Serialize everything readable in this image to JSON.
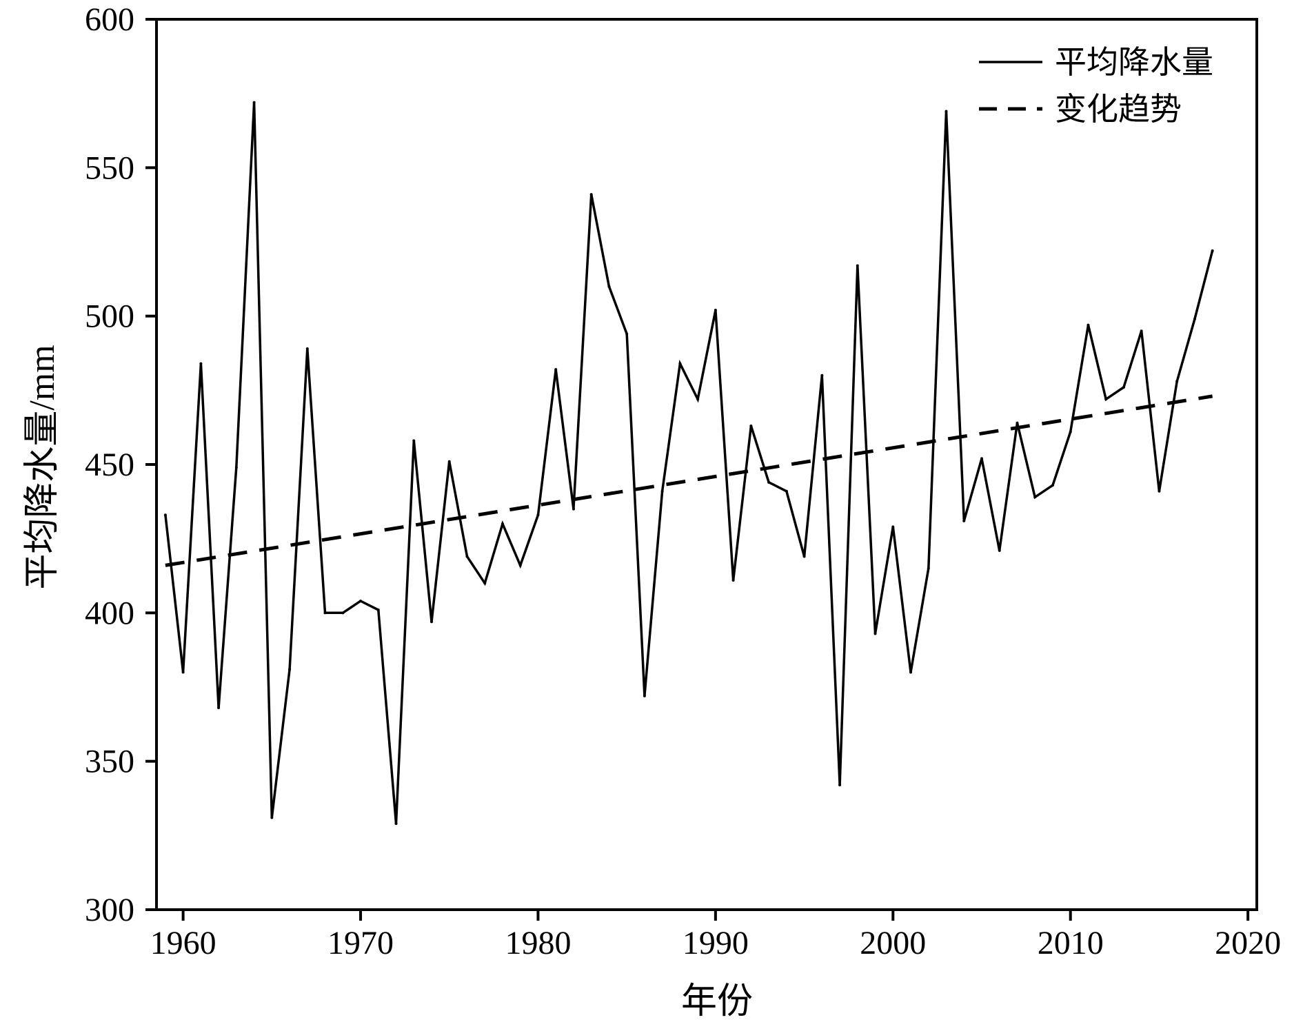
{
  "chart_data": {
    "type": "line",
    "title": "",
    "xlabel": "年份",
    "ylabel": "平均降水量/mm",
    "xlim": [
      1958.5,
      2020.5
    ],
    "ylim": [
      300,
      600
    ],
    "xticks": [
      1960,
      1970,
      1980,
      1990,
      2000,
      2010,
      2020
    ],
    "yticks": [
      300,
      350,
      400,
      450,
      500,
      550,
      600
    ],
    "grid": false,
    "legend_position": "top-right",
    "series": [
      {
        "name": "平均降水量",
        "style": "solid",
        "color": "#000000",
        "x": [
          1959,
          1960,
          1961,
          1962,
          1963,
          1964,
          1965,
          1966,
          1967,
          1968,
          1969,
          1970,
          1971,
          1972,
          1973,
          1974,
          1975,
          1976,
          1977,
          1978,
          1979,
          1980,
          1981,
          1982,
          1983,
          1984,
          1985,
          1986,
          1987,
          1988,
          1989,
          1990,
          1991,
          1992,
          1993,
          1994,
          1995,
          1996,
          1997,
          1998,
          1999,
          2000,
          2001,
          2002,
          2003,
          2004,
          2005,
          2006,
          2007,
          2008,
          2009,
          2010,
          2011,
          2012,
          2013,
          2014,
          2015,
          2016,
          2017,
          2018
        ],
        "y": [
          433,
          380,
          484,
          368,
          449,
          572,
          331,
          381,
          489,
          400,
          400,
          404,
          401,
          329,
          458,
          397,
          451,
          419,
          410,
          430,
          416,
          433,
          482,
          435,
          541,
          510,
          494,
          372,
          441,
          484,
          472,
          502,
          411,
          463,
          444,
          441,
          419,
          480,
          342,
          517,
          393,
          429,
          380,
          415,
          569,
          431,
          452,
          421,
          464,
          439,
          443,
          461,
          497,
          472,
          476,
          495,
          441,
          478,
          499,
          522
        ]
      },
      {
        "name": "变化趋势",
        "style": "dashed",
        "color": "#000000",
        "x": [
          1959,
          2018
        ],
        "y": [
          416,
          473
        ]
      }
    ]
  }
}
